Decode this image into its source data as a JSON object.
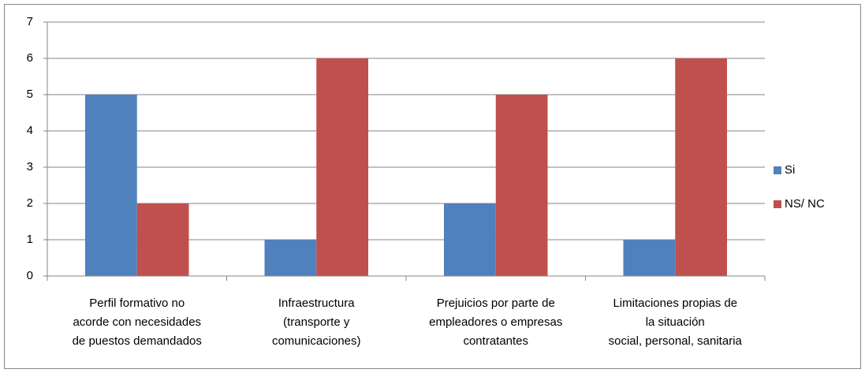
{
  "chart_data": {
    "type": "bar",
    "categories": [
      "Perfil formativo  no\nacorde con necesidades\nde puestos demandados",
      "Infraestructura\n(transporte y\ncomunicaciones)",
      "Prejuicios por parte de\nempleadores o empresas\ncontratantes",
      "Limitaciones propias de\nla situación\nsocial, personal, sanitaria"
    ],
    "series": [
      {
        "name": "Si",
        "color": "#4f81bd",
        "values": [
          5,
          1,
          2,
          1
        ]
      },
      {
        "name": "NS/ NC",
        "color": "#c0504d",
        "values": [
          2,
          6,
          5,
          6
        ]
      }
    ],
    "ylim": [
      0,
      7
    ],
    "yticks": [
      0,
      1,
      2,
      3,
      4,
      5,
      6,
      7
    ],
    "grid": true,
    "legend": "right"
  }
}
